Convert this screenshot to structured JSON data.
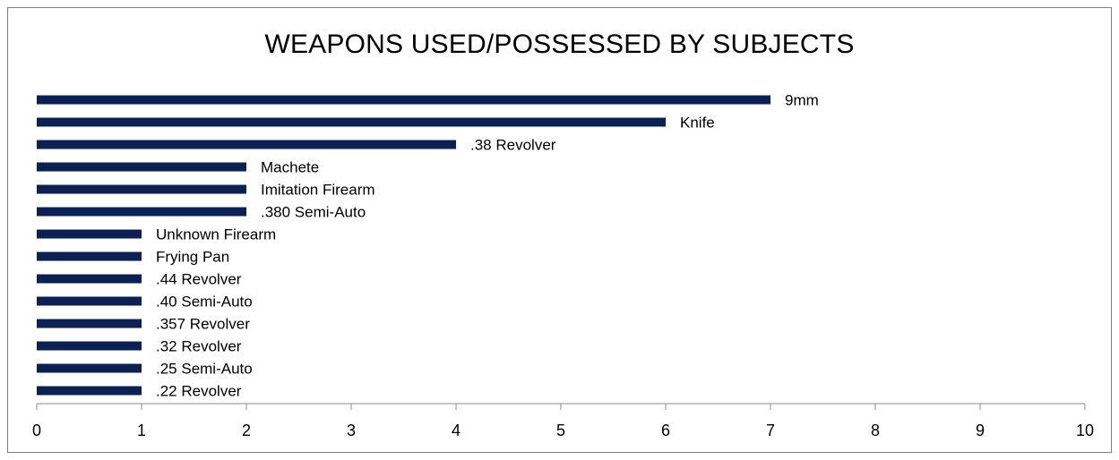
{
  "chart_data": {
    "type": "bar",
    "orientation": "horizontal",
    "title": "WEAPONS USED/POSSESSED BY SUBJECTS",
    "xlabel": "",
    "ylabel": "",
    "xlim": [
      0,
      10
    ],
    "x_ticks": [
      "0",
      "1",
      "2",
      "3",
      "4",
      "5",
      "6",
      "7",
      "8",
      "9",
      "10"
    ],
    "bar_color": "#0c2152",
    "data_labels": "category name at bar end",
    "grid": false,
    "legend": "none",
    "categories": [
      "9mm",
      "Knife",
      ".38 Revolver",
      "Machete",
      "Imitation Firearm",
      ".380 Semi-Auto",
      "Unknown Firearm",
      "Frying Pan",
      ".44 Revolver",
      ".40 Semi-Auto",
      ".357 Revolver",
      ".32 Revolver",
      ".25 Semi-Auto",
      ".22 Revolver"
    ],
    "values": [
      7,
      6,
      4,
      2,
      2,
      2,
      1,
      1,
      1,
      1,
      1,
      1,
      1,
      1
    ]
  }
}
